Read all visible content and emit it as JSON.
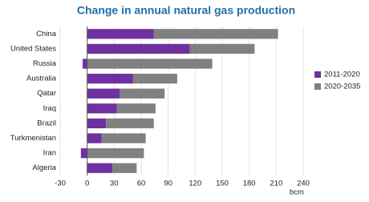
{
  "chart_data": {
    "type": "bar",
    "orientation": "horizontal",
    "stacked": true,
    "title": "Change in annual natural gas production",
    "categories": [
      "China",
      "United States",
      "Russia",
      "Australia",
      "Qatar",
      "Iraq",
      "Brazil",
      "Turkmenistan",
      "Iran",
      "Algeria"
    ],
    "series": [
      {
        "name": "2011-2020",
        "color": "#7030a0",
        "values": [
          74,
          114,
          -5,
          51,
          36,
          33,
          21,
          16,
          -7,
          28
        ]
      },
      {
        "name": "2020-2035",
        "color": "#808080",
        "values": [
          138,
          72,
          139,
          49,
          50,
          43,
          53,
          49,
          63,
          27
        ]
      }
    ],
    "xlim": [
      -30,
      240
    ],
    "xticks": [
      -30,
      0,
      30,
      60,
      90,
      120,
      150,
      180,
      210,
      240
    ],
    "xlabel": "bcm",
    "grid": true,
    "legend": "right"
  }
}
